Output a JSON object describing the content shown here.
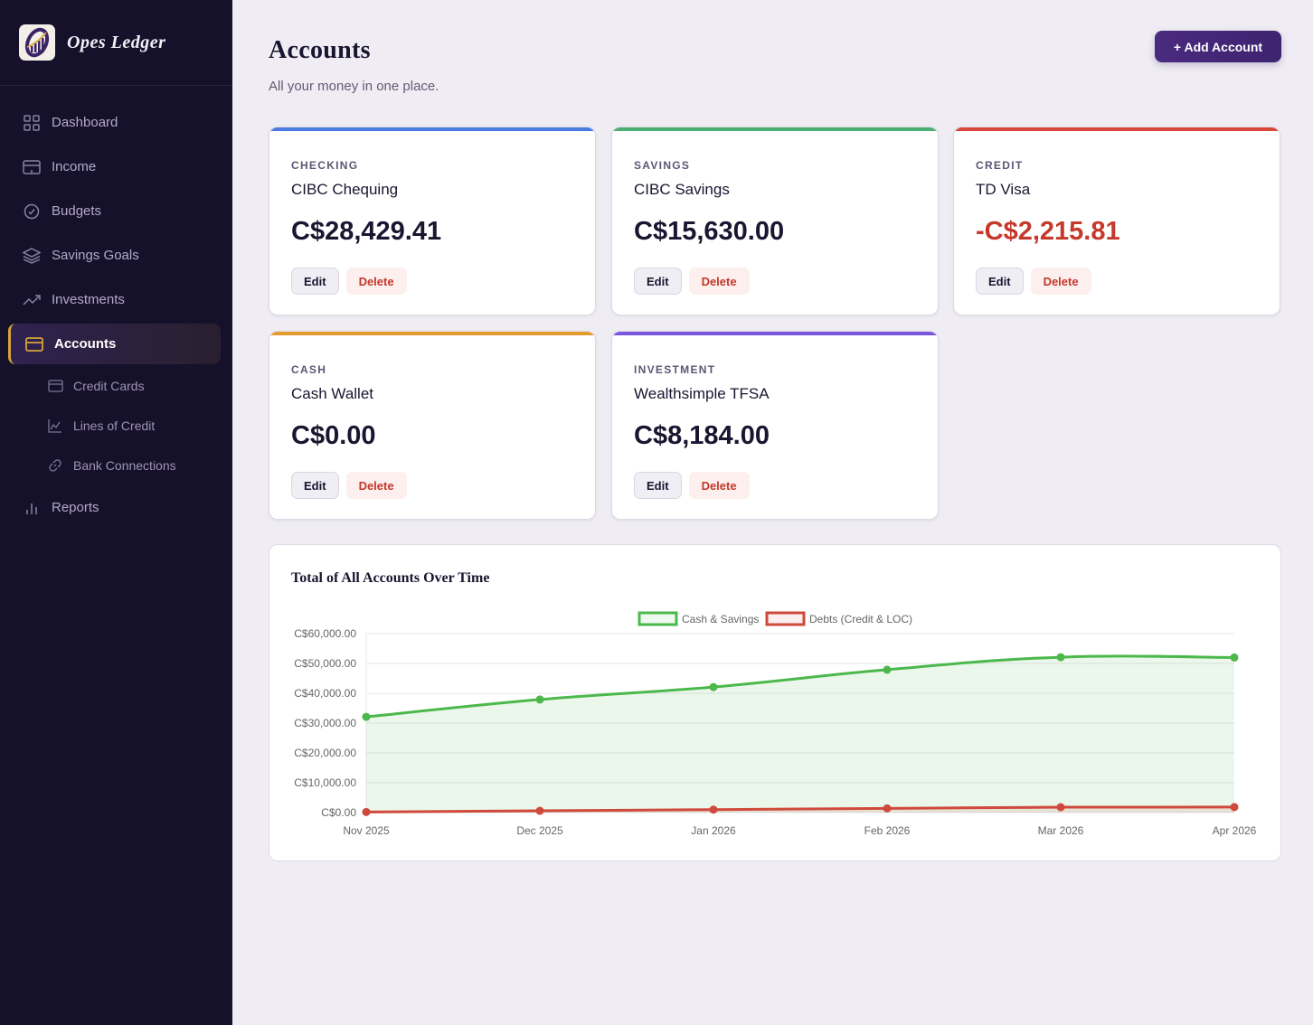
{
  "brand": {
    "name": "Opes Ledger",
    "logo_icon": "chart-logo-icon"
  },
  "sidebar": {
    "items": [
      {
        "label": "Dashboard",
        "icon": "grid-icon",
        "active": false
      },
      {
        "label": "Income",
        "icon": "wallet-icon",
        "active": false
      },
      {
        "label": "Budgets",
        "icon": "check-circle-icon",
        "active": false
      },
      {
        "label": "Savings Goals",
        "icon": "layers-icon",
        "active": false
      },
      {
        "label": "Investments",
        "icon": "trending-up-icon",
        "active": false
      },
      {
        "label": "Accounts",
        "icon": "credit-card-icon",
        "active": true
      },
      {
        "label": "Reports",
        "icon": "bar-chart-icon",
        "active": false
      }
    ],
    "subitems": [
      {
        "label": "Credit Cards",
        "icon": "credit-card-icon"
      },
      {
        "label": "Lines of Credit",
        "icon": "line-chart-icon"
      },
      {
        "label": "Bank Connections",
        "icon": "link-icon"
      }
    ]
  },
  "header": {
    "title": "Accounts",
    "subtitle": "All your money in one place.",
    "add_button": "+ Add Account"
  },
  "accounts": [
    {
      "type": "CHECKING",
      "name": "CIBC Chequing",
      "balance": "C$28,429.41",
      "color": "#4a7be0",
      "negative": false,
      "edit": "Edit",
      "delete": "Delete"
    },
    {
      "type": "SAVINGS",
      "name": "CIBC Savings",
      "balance": "C$15,630.00",
      "color": "#4caf72",
      "negative": false,
      "edit": "Edit",
      "delete": "Delete"
    },
    {
      "type": "CREDIT",
      "name": "TD Visa",
      "balance": "-C$2,215.81",
      "color": "#d9473a",
      "negative": true,
      "edit": "Edit",
      "delete": "Delete"
    },
    {
      "type": "CASH",
      "name": "Cash Wallet",
      "balance": "C$0.00",
      "color": "#e59a2e",
      "negative": false,
      "edit": "Edit",
      "delete": "Delete"
    },
    {
      "type": "INVESTMENT",
      "name": "Wealthsimple TFSA",
      "balance": "C$8,184.00",
      "color": "#7b55e0",
      "negative": false,
      "edit": "Edit",
      "delete": "Delete"
    }
  ],
  "chart": {
    "title": "Total of All Accounts Over Time"
  },
  "chart_data": {
    "type": "line",
    "title": "Total of All Accounts Over Time",
    "xlabel": "",
    "ylabel": "",
    "categories": [
      "Nov 2025",
      "Dec 2025",
      "Jan 2026",
      "Feb 2026",
      "Mar 2026",
      "Apr 2026"
    ],
    "series": [
      {
        "name": "Cash & Savings",
        "color": "#4cb84c",
        "fill": true,
        "values": [
          32100,
          37900,
          42100,
          47900,
          52100,
          52000
        ]
      },
      {
        "name": "Debts (Credit & LOC)",
        "color": "#cf4a3c",
        "fill": true,
        "values": [
          200,
          600,
          1000,
          1400,
          1800,
          1850
        ]
      }
    ],
    "ylim": [
      0,
      60000
    ],
    "yticks": [
      "C$0.00",
      "C$10,000.00",
      "C$20,000.00",
      "C$30,000.00",
      "C$40,000.00",
      "C$50,000.00",
      "C$60,000.00"
    ],
    "grid": true,
    "legend_position": "top"
  }
}
